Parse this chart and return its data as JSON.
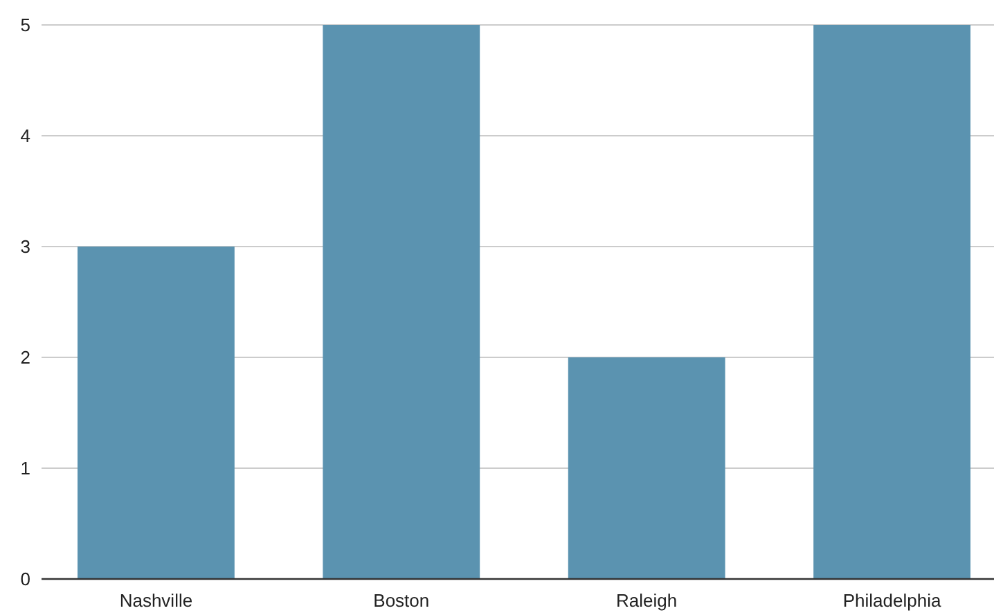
{
  "chart_data": {
    "type": "bar",
    "categories": [
      "Nashville",
      "Boston",
      "Raleigh",
      "Philadelphia"
    ],
    "values": [
      3,
      5,
      2,
      5
    ],
    "color": "#5b93b0",
    "ylim": [
      0,
      5
    ],
    "yticks": [
      0,
      1,
      2,
      3,
      4,
      5
    ],
    "grid": "y"
  }
}
